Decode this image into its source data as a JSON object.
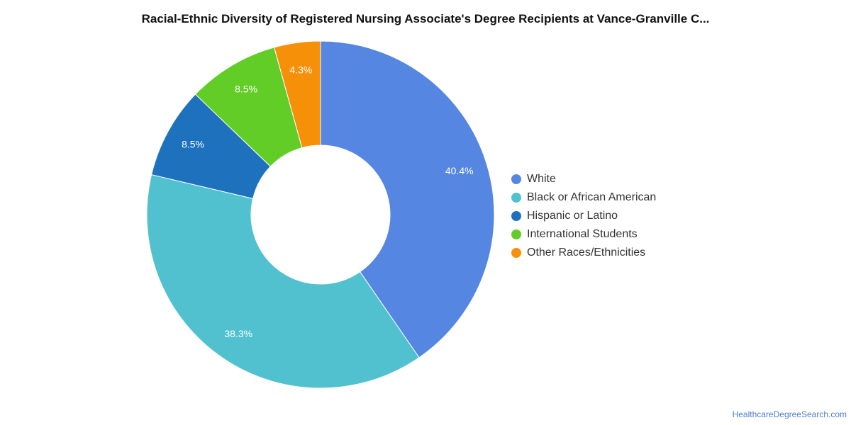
{
  "chart_data": {
    "type": "pie",
    "title": "Racial-Ethnic Diversity of Registered Nursing Associate's Degree Recipients at Vance-Granville C...",
    "categories": [
      "White",
      "Black or African American",
      "Hispanic or Latino",
      "International Students",
      "Other Races/Ethnicities"
    ],
    "values": [
      40.4,
      38.3,
      8.5,
      8.5,
      4.3
    ],
    "data_labels": [
      "40.4%",
      "38.3%",
      "8.5%",
      "8.5%",
      "4.3%"
    ],
    "colors": [
      "#5486e2",
      "#52c1cf",
      "#1e72bd",
      "#62cd26",
      "#f79009"
    ],
    "donut": true,
    "legend_position": "right"
  },
  "source": "HealthcareDegreeSearch.com"
}
